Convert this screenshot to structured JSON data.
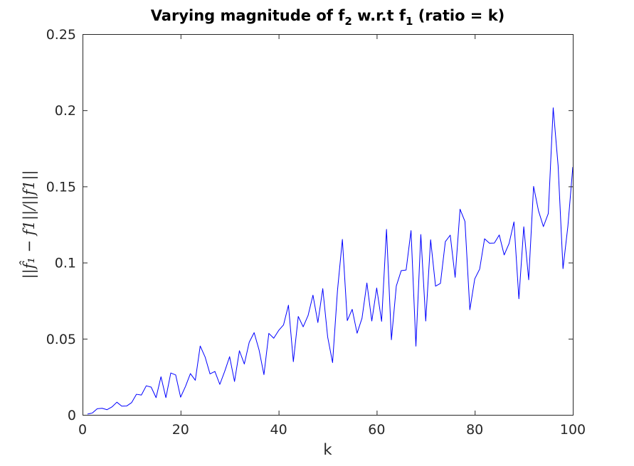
{
  "chart_data": {
    "type": "line",
    "title_main": "Varying magnitude of f",
    "title_sub1": "2",
    "title_mid": " w.r.t f",
    "title_sub2": "1",
    "title_end": " (ratio = k)",
    "xlabel": "k",
    "ylabel": "||f̂₁ − f1||/||f1||",
    "xlim": [
      0,
      100
    ],
    "ylim": [
      0,
      0.25
    ],
    "xticks": [
      0,
      20,
      40,
      60,
      80,
      100
    ],
    "xtick_labels": [
      "0",
      "20",
      "40",
      "60",
      "80",
      "100"
    ],
    "yticks": [
      0,
      0.05,
      0.1,
      0.15,
      0.2,
      0.25
    ],
    "ytick_labels": [
      "0",
      "0.05",
      "0.1",
      "0.15",
      "0.2",
      "0.25"
    ],
    "grid": false,
    "series": [
      {
        "color": "#0000ff",
        "x": [
          1,
          2,
          3,
          4,
          5,
          6,
          7,
          8,
          9,
          10,
          11,
          12,
          13,
          14,
          15,
          16,
          17,
          18,
          19,
          20,
          21,
          22,
          23,
          24,
          25,
          26,
          27,
          28,
          29,
          30,
          31,
          32,
          33,
          34,
          35,
          36,
          37,
          38,
          39,
          40,
          41,
          42,
          43,
          44,
          45,
          46,
          47,
          48,
          49,
          50,
          51,
          52,
          53,
          54,
          55,
          56,
          57,
          58,
          59,
          60,
          61,
          62,
          63,
          64,
          65,
          66,
          67,
          68,
          69,
          70,
          71,
          72,
          73,
          74,
          75,
          76,
          77,
          78,
          79,
          80,
          81,
          82,
          83,
          84,
          85,
          86,
          87,
          88,
          89,
          90,
          91,
          92,
          93,
          94,
          95,
          96,
          97,
          98,
          99,
          100
        ],
        "values": [
          0.0005,
          0.0012,
          0.004,
          0.0043,
          0.0034,
          0.0052,
          0.0083,
          0.0057,
          0.0058,
          0.008,
          0.0135,
          0.013,
          0.0191,
          0.0182,
          0.0113,
          0.025,
          0.0113,
          0.0275,
          0.0262,
          0.0116,
          0.0187,
          0.0271,
          0.0227,
          0.0452,
          0.038,
          0.0269,
          0.0285,
          0.02,
          0.0286,
          0.0382,
          0.0219,
          0.0421,
          0.0334,
          0.0477,
          0.054,
          0.0427,
          0.0264,
          0.0535,
          0.0503,
          0.0554,
          0.0591,
          0.072,
          0.0349,
          0.0646,
          0.0578,
          0.0652,
          0.0786,
          0.0606,
          0.0829,
          0.0511,
          0.0343,
          0.0816,
          0.1152,
          0.0619,
          0.0693,
          0.0536,
          0.0634,
          0.0866,
          0.0616,
          0.0833,
          0.0614,
          0.1218,
          0.0493,
          0.0846,
          0.0947,
          0.0951,
          0.121,
          0.0451,
          0.1184,
          0.0616,
          0.115,
          0.0845,
          0.0863,
          0.1137,
          0.118,
          0.0903,
          0.135,
          0.127,
          0.069,
          0.0893,
          0.0957,
          0.1156,
          0.1127,
          0.1128,
          0.1181,
          0.105,
          0.1125,
          0.1267,
          0.0762,
          0.1235,
          0.0887,
          0.15,
          0.134,
          0.1236,
          0.1322,
          0.2016,
          0.1637,
          0.096,
          0.124,
          0.1627
        ]
      }
    ]
  }
}
